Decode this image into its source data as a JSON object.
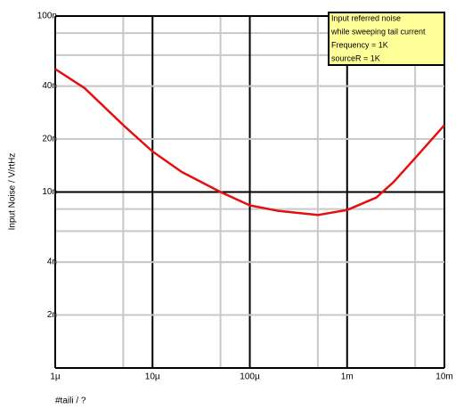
{
  "chart_data": {
    "type": "line",
    "x_label": "#taili / ?",
    "y_label": "Input Noise / V/rtHz",
    "annotation": [
      "Input referred noise",
      "while sweeping tail current",
      "Frequency = 1K",
      "sourceR = 1K"
    ],
    "x_log": true,
    "y_log": true,
    "grid": true,
    "xlim": [
      1e-06,
      0.01
    ],
    "ylim": [
      1e-09,
      1e-07
    ],
    "xticks": [
      {
        "value": 1e-06,
        "label": "1µ"
      },
      {
        "value": 1e-05,
        "label": "10µ"
      },
      {
        "value": 0.0001,
        "label": "100µ"
      },
      {
        "value": 0.001,
        "label": "1m"
      },
      {
        "value": 0.01,
        "label": "10m"
      }
    ],
    "yticks": [
      {
        "value": 2e-09,
        "label": "2n"
      },
      {
        "value": 4e-09,
        "label": "4n"
      },
      {
        "value": 1e-08,
        "label": "10n"
      },
      {
        "value": 2e-08,
        "label": "20n"
      },
      {
        "value": 4e-08,
        "label": "40n"
      },
      {
        "value": 1e-07,
        "label": "100n"
      }
    ],
    "x_minor_ticks": [
      5e-06,
      5e-05,
      0.0005,
      0.005
    ],
    "y_minor_ticks": [
      2e-09,
      4e-09,
      6e-09,
      8e-09,
      2e-08,
      4e-08,
      6e-08,
      8e-08
    ],
    "x": [
      1e-06,
      2e-06,
      5e-06,
      1e-05,
      2e-05,
      5e-05,
      0.0001,
      0.0002,
      0.0005,
      0.001,
      0.002,
      0.003,
      0.005,
      0.01
    ],
    "series": [
      {
        "color": "#e41010",
        "values": [
          5e-08,
          3.9e-08,
          2.4e-08,
          1.7e-08,
          1.3e-08,
          1e-08,
          8.4e-09,
          7.8e-09,
          7.4e-09,
          7.9e-09,
          9.3e-09,
          1.14e-08,
          1.56e-08,
          2.4e-08
        ]
      }
    ]
  }
}
